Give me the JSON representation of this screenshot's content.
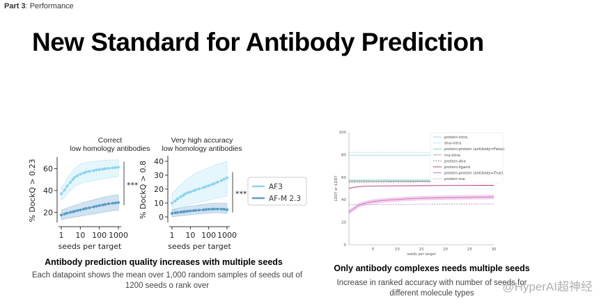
{
  "header": {
    "part_label": "Part 3",
    "part_name": "Performance",
    "title": "New Standard for Antibody Prediction"
  },
  "left_panel": {
    "caption_bold": "Antibody prediction quality increases with multiple seeds",
    "caption_text": "Each datapoint shows the mean over 1,000 random samples of seeds out of 1200 seeds o rank over",
    "significance": "***"
  },
  "right_panel": {
    "caption_bold": "Only antibody complexes needs multiple seeds",
    "caption_text": "Increase in ranked accuracy with number of seeds for different molecule types"
  },
  "watermark": "@HyperAI超神经",
  "colors": {
    "af3": "#8ad4f0",
    "afm": "#5b9cc9",
    "magenta": "#c44da8"
  },
  "chart_data": [
    {
      "type": "line",
      "title": "Correct\nlow homology antibodies",
      "xlabel": "seeds per target",
      "ylabel": "% DockQ > 0.23",
      "xscale": "log",
      "xticks": [
        "1",
        "10",
        "100",
        "1000"
      ],
      "yticks": [
        "20",
        "40",
        "60"
      ],
      "ylim": [
        12,
        68
      ],
      "x": [
        1,
        1.5,
        2,
        3,
        4,
        5,
        7,
        10,
        15,
        20,
        30,
        50,
        70,
        100,
        150,
        200,
        300,
        500,
        700,
        1000
      ],
      "series": [
        {
          "name": "AF3",
          "values": [
            37,
            40.5,
            44,
            47.5,
            50,
            52,
            53.5,
            55,
            56,
            57,
            57.5,
            58.2,
            58.8,
            59.2,
            59.6,
            60,
            60.3,
            60.7,
            61,
            61.3
          ]
        },
        {
          "name": "AF-M 2.3",
          "values": [
            17.5,
            18.5,
            19.2,
            20,
            20.5,
            21,
            21.6,
            22.2,
            23,
            23.5,
            24.2,
            25,
            25.6,
            26.2,
            26.8,
            27.3,
            27.8,
            28.3,
            28.6,
            29
          ]
        }
      ],
      "bands": [
        {
          "lower": [
            31,
            34,
            37,
            40,
            42,
            44,
            45,
            46,
            47,
            48,
            48.5,
            49,
            49.5,
            50,
            50.5,
            51,
            51.5,
            52,
            52.5,
            53
          ],
          "upper": [
            43,
            47,
            51,
            55,
            58,
            60,
            62,
            64,
            65,
            65.5,
            66,
            66.5,
            67,
            67,
            67.5,
            67.8,
            68,
            68,
            68,
            68
          ]
        },
        {
          "lower": [
            13,
            14,
            14.5,
            15,
            15.3,
            15.6,
            16,
            16.5,
            17,
            17.4,
            18,
            18.5,
            19,
            19.5,
            20,
            20.5,
            21,
            21.5,
            21.8,
            22
          ],
          "upper": [
            22,
            23,
            24,
            25,
            25.7,
            26.4,
            27.2,
            28,
            29,
            29.6,
            30.4,
            31.5,
            32.2,
            33,
            33.6,
            34.2,
            34.8,
            35.4,
            35.8,
            36
          ]
        }
      ],
      "annotation": "***"
    },
    {
      "type": "line",
      "title": "Very high accuracy\nlow homology antibodies",
      "xlabel": "seeds per target",
      "ylabel": "% DockQ > 0.8",
      "xscale": "log",
      "xticks": [
        "1",
        "10",
        "100",
        "1000"
      ],
      "yticks": [
        "0",
        "10",
        "20",
        "30",
        "40"
      ],
      "ylim": [
        -3,
        42
      ],
      "x": [
        1,
        1.5,
        2,
        3,
        4,
        5,
        7,
        10,
        15,
        20,
        30,
        50,
        70,
        100,
        150,
        200,
        300,
        500,
        700,
        1000
      ],
      "series": [
        {
          "name": "AF3",
          "values": [
            10,
            11.5,
            13,
            14.5,
            15.5,
            16.5,
            17.3,
            18,
            18.8,
            19.5,
            20.2,
            21,
            21.8,
            22.5,
            23.3,
            24,
            25,
            26.2,
            27.2,
            28.2
          ]
        },
        {
          "name": "AF-M 2.3",
          "values": [
            2.5,
            3,
            3.2,
            3.5,
            3.7,
            3.9,
            4.1,
            4.3,
            4.5,
            4.7,
            4.9,
            5.1,
            5.3,
            5.5,
            5.6,
            5.7,
            5.7,
            5.6,
            5.5,
            5.2
          ]
        }
      ],
      "bands": [
        {
          "lower": [
            4,
            5,
            6,
            7,
            7.5,
            8,
            8.5,
            9,
            9.5,
            10,
            10.5,
            11,
            11.5,
            12,
            12.5,
            13,
            13.5,
            14,
            14.5,
            15
          ],
          "upper": [
            17,
            19,
            21,
            23,
            24.5,
            26,
            27.5,
            29,
            30.5,
            31.5,
            32.5,
            33.5,
            34.5,
            35.5,
            36.3,
            37,
            37.8,
            38.6,
            39.2,
            40
          ]
        },
        {
          "lower": [
            0,
            0.3,
            0.5,
            0.8,
            1,
            1.2,
            1.4,
            1.6,
            1.8,
            2,
            2.2,
            2.4,
            2.6,
            2.8,
            2.9,
            3,
            3,
            2.9,
            2.8,
            2.6
          ],
          "upper": [
            5,
            5.6,
            6,
            6.5,
            6.8,
            7.1,
            7.4,
            7.7,
            8,
            8.3,
            8.6,
            8.9,
            9.2,
            9.5,
            9.7,
            9.9,
            10,
            10,
            9.9,
            9.7
          ]
        }
      ],
      "annotation": "***",
      "legend": {
        "placement": "right",
        "entries": [
          "AF3",
          "AF-M 2.3"
        ]
      }
    },
    {
      "type": "line",
      "xlabel": "seeds per target",
      "ylabel": "LDDT or iLDDT",
      "xlim": [
        0,
        30
      ],
      "ylim": [
        0,
        100
      ],
      "xticks": [
        "5",
        "10",
        "15",
        "20",
        "25",
        "30"
      ],
      "yticks": [
        "0",
        "20",
        "40",
        "60",
        "80",
        "100"
      ],
      "legend": {
        "placement": "top-right"
      },
      "series": [
        {
          "name": "protein-intra",
          "color": "#8fd6e6",
          "dash": false,
          "x": [
            0,
            30
          ],
          "y": [
            79.5,
            79.5
          ]
        },
        {
          "name": "dna-intra",
          "color": "#8fd6e6",
          "dash": true,
          "x": [
            0,
            30
          ],
          "y": [
            82,
            82
          ]
        },
        {
          "name": "protein-protein (antibody=False)",
          "color": "#6dcfc7",
          "dash": false,
          "x": [
            0,
            30
          ],
          "y": [
            57.5,
            57.5
          ]
        },
        {
          "name": "rna-intra",
          "color": "#9a9a9a",
          "dash": false,
          "x": [
            0,
            30
          ],
          "y": [
            56.5,
            56.5
          ]
        },
        {
          "name": "protein-dna",
          "color": "#777777",
          "dash": true,
          "x": [
            0,
            30
          ],
          "y": [
            55.5,
            56
          ]
        },
        {
          "name": "protein-ligand",
          "color": "#b0306f",
          "dash": false,
          "x": [
            0,
            1,
            2,
            3,
            5,
            10,
            15,
            20,
            30
          ],
          "y": [
            50,
            51,
            51.5,
            52,
            52,
            52.3,
            52.5,
            52.6,
            52.8
          ]
        },
        {
          "name": "protein-protein (antibody=True)",
          "color": "#d06ac0",
          "dash": false,
          "x": [
            0,
            1,
            2,
            3,
            4,
            5,
            7,
            10,
            12,
            15,
            20,
            25,
            30
          ],
          "y": [
            29,
            32,
            35,
            36.5,
            37.5,
            38.3,
            39.3,
            40.2,
            40.8,
            41.3,
            41.8,
            42.1,
            42.4
          ]
        },
        {
          "name": "protein-rna",
          "color": "#b48ad6",
          "dash": true,
          "x": [
            0,
            30
          ],
          "y": [
            35.5,
            36.3
          ]
        }
      ]
    }
  ]
}
